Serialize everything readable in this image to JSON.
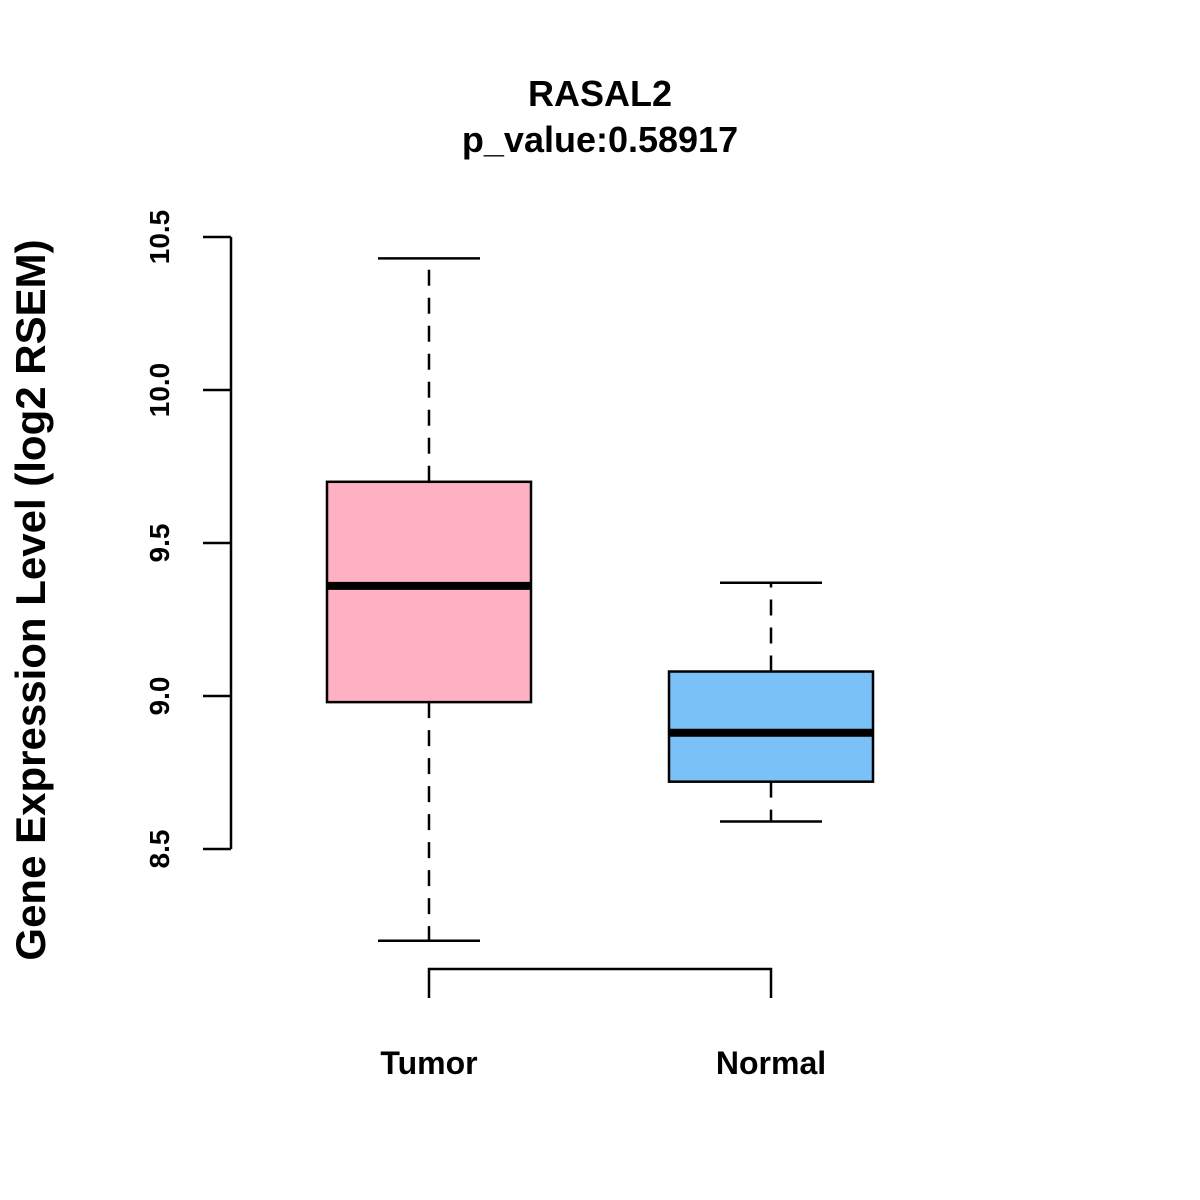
{
  "chart_data": {
    "type": "boxplot",
    "title": "RASAL2",
    "subtitle": "p_value:0.58917",
    "xlabel": "",
    "ylabel": "Gene Expression Level (log2 RSEM)",
    "ylim": [
      8.5,
      10.5
    ],
    "yticks": [
      "8.5",
      "9.0",
      "9.5",
      "10.0",
      "10.5"
    ],
    "categories": [
      "Tumor",
      "Normal"
    ],
    "series": [
      {
        "name": "Tumor",
        "min": 8.2,
        "q1": 8.98,
        "median": 9.36,
        "q3": 9.7,
        "max": 10.43,
        "color": "#FDB1C2"
      },
      {
        "name": "Normal",
        "min": 8.59,
        "q1": 8.72,
        "median": 8.88,
        "q3": 9.08,
        "max": 9.37,
        "color": "#79C1F7"
      }
    ],
    "comparison_bracket": true
  }
}
